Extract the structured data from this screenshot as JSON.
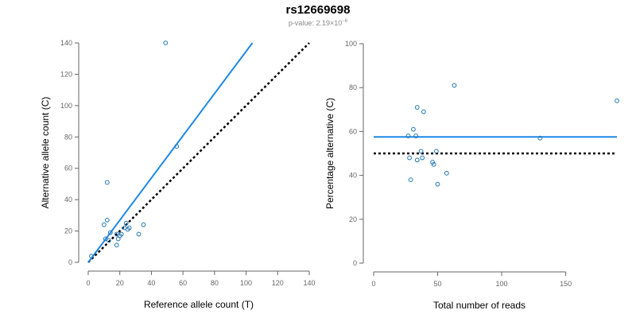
{
  "title": "rs12669698",
  "subtitle": {
    "prefix": "p-value: 2.19×10",
    "exponent": "−6"
  },
  "colors": {
    "points": "#1f77b4",
    "fit_line": "#1e88e5",
    "reference_line": "#000000",
    "axis": "#666666"
  },
  "chart_data": [
    {
      "type": "scatter",
      "xlabel": "Reference allele count (T)",
      "ylabel": "Alternative allele count (C)",
      "xlim": [
        0,
        140
      ],
      "ylim": [
        0,
        140
      ],
      "xticks": [
        "0",
        "20",
        "40",
        "60",
        "80",
        "100",
        "120",
        "140"
      ],
      "yticks": [
        "0",
        "20",
        "40",
        "60",
        "80",
        "100",
        "120",
        "140"
      ],
      "grid": false,
      "points": [
        {
          "x": 49,
          "y": 140
        },
        {
          "x": 56,
          "y": 74
        },
        {
          "x": 12,
          "y": 51
        },
        {
          "x": 12,
          "y": 27
        },
        {
          "x": 10,
          "y": 24
        },
        {
          "x": 14,
          "y": 19
        },
        {
          "x": 11,
          "y": 15
        },
        {
          "x": 13,
          "y": 14
        },
        {
          "x": 18,
          "y": 18
        },
        {
          "x": 19,
          "y": 15
        },
        {
          "x": 18,
          "y": 11
        },
        {
          "x": 21,
          "y": 18
        },
        {
          "x": 20,
          "y": 17
        },
        {
          "x": 23,
          "y": 22
        },
        {
          "x": 24,
          "y": 25
        },
        {
          "x": 25,
          "y": 21
        },
        {
          "x": 26,
          "y": 22
        },
        {
          "x": 32,
          "y": 18
        },
        {
          "x": 35,
          "y": 24
        },
        {
          "x": 2,
          "y": 4
        }
      ],
      "fit_line": {
        "x": [
          0,
          104
        ],
        "y": [
          0,
          140
        ]
      },
      "reference_line": {
        "x": [
          0,
          140
        ],
        "y": [
          0,
          140
        ]
      }
    },
    {
      "type": "scatter",
      "xlabel": "Total number of reads",
      "ylabel": "Percentage alternative (C)",
      "xlim": [
        0,
        190
      ],
      "ylim": [
        0,
        100
      ],
      "xticks": [
        "0",
        "50",
        "100",
        "150"
      ],
      "yticks": [
        "0",
        "20",
        "40",
        "60",
        "80",
        "100"
      ],
      "grid": false,
      "points": [
        {
          "x": 63,
          "y": 81
        },
        {
          "x": 190,
          "y": 74
        },
        {
          "x": 34,
          "y": 71
        },
        {
          "x": 39,
          "y": 69
        },
        {
          "x": 31,
          "y": 61
        },
        {
          "x": 27,
          "y": 58
        },
        {
          "x": 33,
          "y": 58
        },
        {
          "x": 130,
          "y": 57
        },
        {
          "x": 37,
          "y": 51
        },
        {
          "x": 49,
          "y": 51
        },
        {
          "x": 28,
          "y": 48
        },
        {
          "x": 34,
          "y": 47
        },
        {
          "x": 38,
          "y": 48
        },
        {
          "x": 46,
          "y": 46
        },
        {
          "x": 47,
          "y": 45
        },
        {
          "x": 57,
          "y": 41
        },
        {
          "x": 29,
          "y": 38
        },
        {
          "x": 50,
          "y": 36
        }
      ],
      "fit_line": {
        "x": [
          0,
          190
        ],
        "y": [
          57.5,
          57.5
        ]
      },
      "reference_line": {
        "x": [
          0,
          190
        ],
        "y": [
          50,
          50
        ]
      }
    }
  ]
}
